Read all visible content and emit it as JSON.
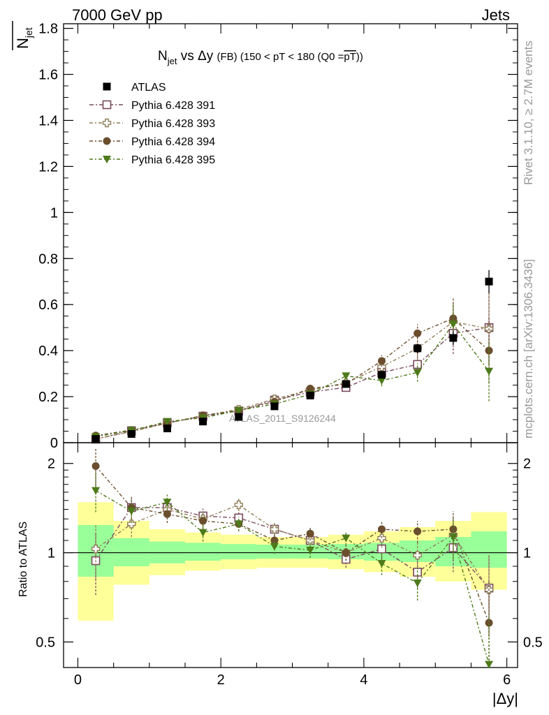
{
  "header": {
    "left": "7000 GeV pp",
    "right": "Jets"
  },
  "side_labels": {
    "rivet": "Rivet 3.1.10, ≥ 2.7M events",
    "mcplots": "mcplots.cern.ch [arXiv:1306.3436]"
  },
  "chart_data": [
    {
      "type": "scatter",
      "title": "N_jet vs Δy (FB) (150 < pT < 180 (Q0 = pT))",
      "title_parts": {
        "main": "N",
        "sub": "jet",
        "mid": " vs Δy ",
        "small": "(FB) (150 < pT < 180 (Q0 =",
        "overline": "pT",
        "end": "))"
      },
      "ylabel": "N̄ jet",
      "ylabel_parts": {
        "main": "N",
        "sub": "jet"
      },
      "xlabel": "",
      "xlim": [
        -0.2,
        6.15
      ],
      "ylim": [
        0,
        1.82
      ],
      "yticks": [
        0,
        0.2,
        0.4,
        0.6,
        0.8,
        1,
        1.2,
        1.4,
        1.6,
        1.8
      ],
      "ytick_labels": [
        "0",
        "0.2",
        "0.4",
        "0.6",
        "0.8",
        "1",
        "1.2",
        "1.4",
        "1.6",
        "1.8"
      ],
      "watermark": "ATLAS_2011_S9126244",
      "x": [
        0.25,
        0.75,
        1.25,
        1.75,
        2.25,
        2.75,
        3.25,
        3.75,
        4.25,
        4.75,
        5.25,
        5.75
      ],
      "series": [
        {
          "name": "ATLAS",
          "marker": "filled-square",
          "color": "#000000",
          "values": [
            0.016,
            0.038,
            0.062,
            0.092,
            0.112,
            0.158,
            0.205,
            0.255,
            0.295,
            0.41,
            0.455,
            0.7
          ],
          "errors": [
            0.002,
            0.003,
            0.004,
            0.005,
            0.006,
            0.008,
            0.01,
            0.012,
            0.015,
            0.02,
            0.03,
            0.05
          ]
        },
        {
          "name": "Pythia 6.428 391",
          "marker": "open-square",
          "color": "#7a4a5e",
          "dash": "6,3,2,3",
          "values": [
            0.015,
            0.052,
            0.086,
            0.115,
            0.138,
            0.185,
            0.22,
            0.24,
            0.305,
            0.34,
            0.475,
            0.5
          ],
          "errors": [
            0.003,
            0.004,
            0.005,
            0.006,
            0.008,
            0.01,
            0.012,
            0.015,
            0.025,
            0.05,
            0.09,
            0.16
          ]
        },
        {
          "name": "Pythia 6.428 393",
          "marker": "open-cross",
          "color": "#8f7d57",
          "dash": "5,3,2,3",
          "values": [
            0.016,
            0.048,
            0.085,
            0.117,
            0.145,
            0.19,
            0.228,
            0.26,
            0.33,
            0.41,
            0.525,
            0.495
          ],
          "errors": [
            0.003,
            0.004,
            0.005,
            0.006,
            0.008,
            0.01,
            0.012,
            0.015,
            0.025,
            0.05,
            0.09,
            0.16
          ]
        },
        {
          "name": "Pythia 6.428 394",
          "marker": "filled-circle",
          "color": "#6b4e2e",
          "dash": "5,3,2,3",
          "values": [
            0.031,
            0.055,
            0.085,
            0.118,
            0.14,
            0.178,
            0.235,
            0.255,
            0.355,
            0.475,
            0.54,
            0.4
          ],
          "errors": [
            0.003,
            0.004,
            0.005,
            0.006,
            0.008,
            0.01,
            0.012,
            0.015,
            0.025,
            0.04,
            0.09,
            0.14
          ]
        },
        {
          "name": "Pythia 6.428 395",
          "marker": "filled-triangle-down",
          "color": "#4d7a1a",
          "dash": "5,3,2,3",
          "values": [
            0.026,
            0.053,
            0.092,
            0.108,
            0.14,
            0.168,
            0.21,
            0.29,
            0.27,
            0.305,
            0.515,
            0.31
          ],
          "errors": [
            0.003,
            0.004,
            0.005,
            0.006,
            0.008,
            0.01,
            0.012,
            0.015,
            0.025,
            0.04,
            0.09,
            0.13
          ]
        }
      ]
    },
    {
      "type": "scatter",
      "title": "",
      "ylabel": "Ratio to ATLAS",
      "xlabel": "|Δy|",
      "xlim": [
        -0.2,
        6.15
      ],
      "ylim": [
        0.41,
        2.35
      ],
      "log_y": true,
      "yticks": [
        0.5,
        1,
        2
      ],
      "ytick_labels": [
        "0.5",
        "1",
        "2"
      ],
      "xticks": [
        0,
        2,
        4,
        6
      ],
      "xtick_labels": [
        "0",
        "2",
        "4",
        "6"
      ],
      "x": [
        0.25,
        0.75,
        1.25,
        1.75,
        2.25,
        2.75,
        3.25,
        3.75,
        4.25,
        4.75,
        5.25,
        5.75
      ],
      "bands": {
        "edges": [
          0,
          0.5,
          1,
          1.5,
          2,
          2.5,
          3,
          3.5,
          4,
          4.5,
          5,
          5.5,
          6
        ],
        "inner": [
          [
            0.83,
            1.24
          ],
          [
            0.9,
            1.12
          ],
          [
            0.92,
            1.09
          ],
          [
            0.94,
            1.08
          ],
          [
            0.95,
            1.07
          ],
          [
            0.955,
            1.065
          ],
          [
            0.955,
            1.065
          ],
          [
            0.95,
            1.07
          ],
          [
            0.94,
            1.08
          ],
          [
            0.93,
            1.1
          ],
          [
            0.9,
            1.13
          ],
          [
            0.89,
            1.18
          ]
        ],
        "outer": [
          [
            0.59,
            1.48
          ],
          [
            0.78,
            1.28
          ],
          [
            0.84,
            1.2
          ],
          [
            0.87,
            1.17
          ],
          [
            0.88,
            1.15
          ],
          [
            0.89,
            1.13
          ],
          [
            0.89,
            1.13
          ],
          [
            0.88,
            1.15
          ],
          [
            0.86,
            1.18
          ],
          [
            0.83,
            1.22
          ],
          [
            0.8,
            1.28
          ],
          [
            0.75,
            1.37
          ]
        ],
        "inner_color": "#99ff99",
        "outer_color": "#ffff99"
      },
      "series": [
        {
          "name": "Pythia 6.428 391",
          "marker": "open-square",
          "color": "#7a4a5e",
          "dash": "6,3,2,3",
          "values": [
            0.94,
            1.42,
            1.42,
            1.33,
            1.31,
            1.2,
            1.1,
            0.95,
            1.03,
            0.86,
            1.04,
            0.76
          ],
          "errors": [
            0.22,
            0.12,
            0.09,
            0.08,
            0.07,
            0.06,
            0.06,
            0.06,
            0.08,
            0.1,
            0.18,
            0.23
          ]
        },
        {
          "name": "Pythia 6.428 393",
          "marker": "open-cross",
          "color": "#8f7d57",
          "dash": "5,3,2,3",
          "values": [
            1.03,
            1.25,
            1.4,
            1.3,
            1.45,
            1.2,
            1.1,
            1.0,
            1.12,
            0.98,
            1.15,
            0.75
          ],
          "errors": [
            0.22,
            0.12,
            0.09,
            0.08,
            0.07,
            0.06,
            0.06,
            0.06,
            0.08,
            0.1,
            0.18,
            0.23
          ]
        },
        {
          "name": "Pythia 6.428 394",
          "marker": "filled-circle",
          "color": "#6b4e2e",
          "dash": "5,3,2,3",
          "values": [
            1.96,
            1.42,
            1.35,
            1.28,
            1.25,
            1.1,
            1.16,
            1.0,
            1.2,
            1.18,
            1.2,
            0.58
          ],
          "errors": [
            0.28,
            0.13,
            0.09,
            0.08,
            0.07,
            0.06,
            0.06,
            0.06,
            0.08,
            0.1,
            0.18,
            0.22
          ]
        },
        {
          "name": "Pythia 6.428 395",
          "marker": "filled-triangle-down",
          "color": "#4d7a1a",
          "dash": "5,3,2,3",
          "values": [
            1.62,
            1.38,
            1.48,
            1.17,
            1.25,
            1.05,
            1.02,
            1.12,
            0.92,
            0.79,
            1.13,
            0.42
          ],
          "errors": [
            0.25,
            0.12,
            0.09,
            0.08,
            0.07,
            0.06,
            0.06,
            0.06,
            0.08,
            0.1,
            0.18,
            0.2
          ]
        }
      ]
    }
  ]
}
